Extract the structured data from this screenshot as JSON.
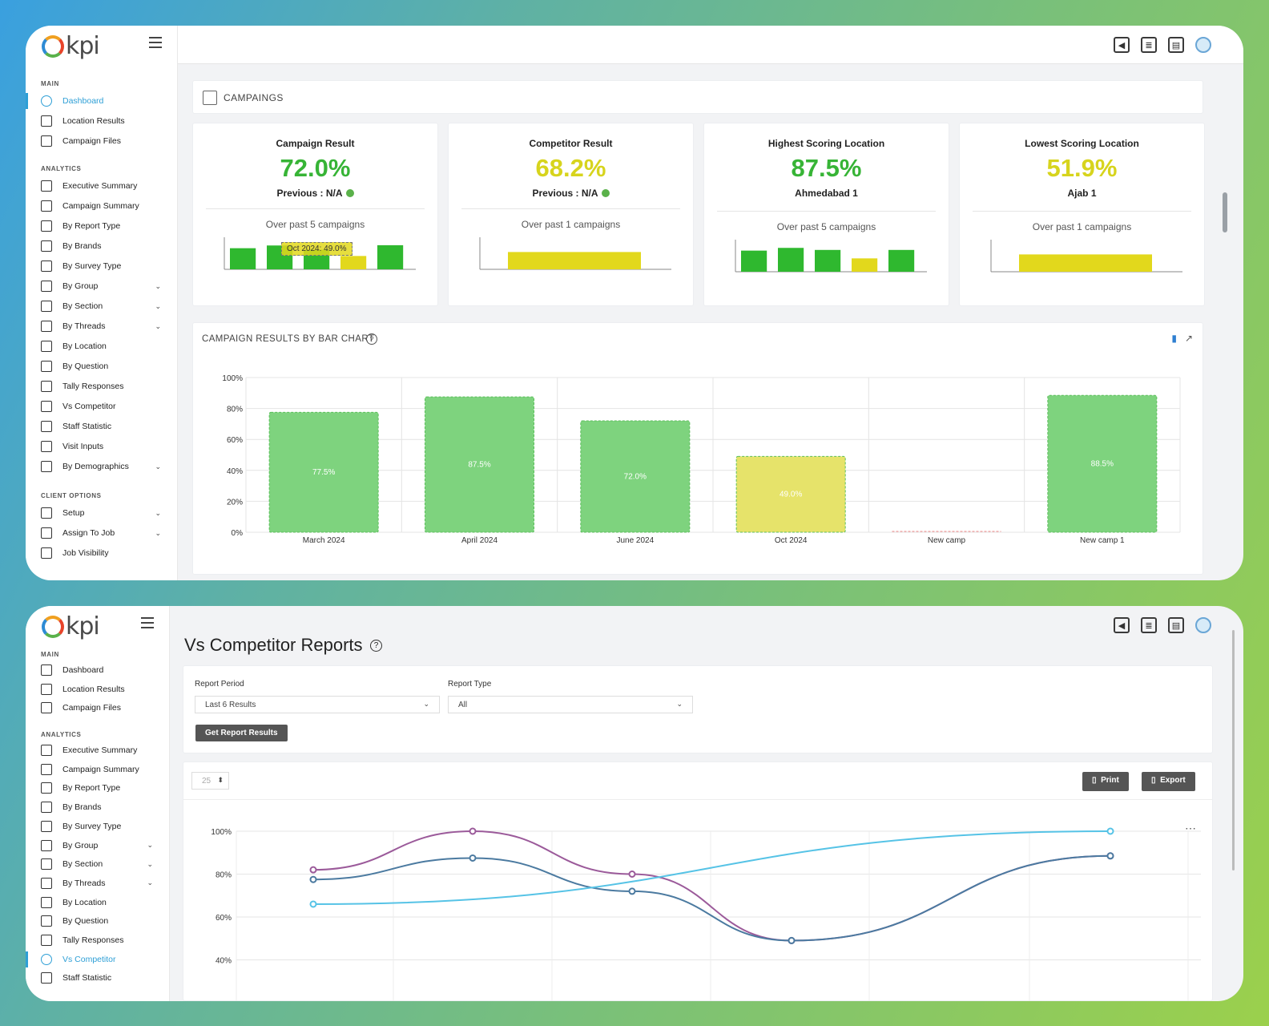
{
  "brand": {
    "logo_text": "kpi"
  },
  "screen1": {
    "sidebar": {
      "main_header": "MAIN",
      "main": [
        {
          "label": "Dashboard",
          "active": true
        },
        {
          "label": "Location Results"
        },
        {
          "label": "Campaign Files"
        }
      ],
      "analytics_header": "ANALYTICS",
      "analytics": [
        {
          "label": "Executive Summary"
        },
        {
          "label": "Campaign Summary"
        },
        {
          "label": "By Report Type"
        },
        {
          "label": "By Brands"
        },
        {
          "label": "By Survey Type"
        },
        {
          "label": "By Group",
          "expandable": true
        },
        {
          "label": "By Section",
          "expandable": true
        },
        {
          "label": "By Threads",
          "expandable": true
        },
        {
          "label": "By Location"
        },
        {
          "label": "By Question"
        },
        {
          "label": "Tally Responses"
        },
        {
          "label": "Vs Competitor"
        },
        {
          "label": "Staff Statistic"
        },
        {
          "label": "Visit Inputs"
        },
        {
          "label": "By Demographics",
          "expandable": true
        }
      ],
      "client_header": "CLIENT OPTIONS",
      "client": [
        {
          "label": "Setup",
          "expandable": true
        },
        {
          "label": "Assign To Job",
          "expandable": true
        },
        {
          "label": "Job Visibility"
        }
      ]
    },
    "campaigns_title": "CAMPAINGS",
    "kpis": [
      {
        "title": "Campaign Result",
        "value": "72.0%",
        "color": "#37b436",
        "sub": "Previous : N/A",
        "sub_icon": true,
        "note": "Over past 5 campaigns",
        "mini": [
          {
            "v": 77.5,
            "c": "#2fb82f"
          },
          {
            "v": 87.5,
            "c": "#2fb82f"
          },
          {
            "v": 72.0,
            "c": "#2fb82f"
          },
          {
            "v": 49.0,
            "c": "#e2d81c"
          },
          {
            "v": 88.5,
            "c": "#2fb82f"
          }
        ],
        "tooltip": "Oct 2024: 49.0%"
      },
      {
        "title": "Competitor Result",
        "value": "68.2%",
        "color": "#d7d41d",
        "sub": "Previous : N/A",
        "sub_icon": true,
        "note": "Over past 1 campaigns",
        "mini": [
          {
            "v": 68.2,
            "c": "#e2d81c"
          }
        ]
      },
      {
        "title": "Highest Scoring Location",
        "value": "87.5%",
        "color": "#37b436",
        "sub": "Ahmedabad 1",
        "sub_icon": false,
        "note": "Over past 5 campaigns",
        "mini": [
          {
            "v": 77.5,
            "c": "#2fb82f"
          },
          {
            "v": 87.5,
            "c": "#2fb82f"
          },
          {
            "v": 80,
            "c": "#2fb82f"
          },
          {
            "v": 49.0,
            "c": "#e2d81c"
          },
          {
            "v": 80,
            "c": "#2fb82f"
          }
        ]
      },
      {
        "title": "Lowest Scoring Location",
        "value": "51.9%",
        "color": "#d7d41d",
        "sub": "Ajab 1",
        "sub_icon": false,
        "note": "Over past 1 campaigns",
        "mini": [
          {
            "v": 51.9,
            "c": "#e2d81c"
          }
        ]
      }
    ],
    "bar_chart_title": "CAMPAIGN RESULTS BY BAR CHART",
    "chart_data": {
      "type": "bar",
      "categories": [
        "March 2024",
        "April 2024",
        "June 2024",
        "Oct 2024",
        "New camp",
        "New camp 1"
      ],
      "values": [
        77.5,
        87.5,
        72.0,
        49.0,
        0,
        88.5
      ],
      "value_labels": [
        "77.5%",
        "87.5%",
        "72.0%",
        "49.0%",
        "",
        "88.5%"
      ],
      "colors": [
        "#7ed37e",
        "#7ed37e",
        "#7ed37e",
        "#e6e36a",
        "#e88",
        "#7ed37e"
      ],
      "yticks": [
        "100%",
        "80%",
        "60%",
        "40%",
        "20%",
        "0%"
      ],
      "ylim": [
        0,
        100
      ]
    }
  },
  "screen2": {
    "sidebar": {
      "main_header": "MAIN",
      "main": [
        {
          "label": "Dashboard"
        },
        {
          "label": "Location Results"
        },
        {
          "label": "Campaign Files"
        }
      ],
      "analytics_header": "ANALYTICS",
      "analytics": [
        {
          "label": "Executive Summary"
        },
        {
          "label": "Campaign Summary"
        },
        {
          "label": "By Report Type"
        },
        {
          "label": "By Brands"
        },
        {
          "label": "By Survey Type"
        },
        {
          "label": "By Group",
          "expandable": true
        },
        {
          "label": "By Section",
          "expandable": true
        },
        {
          "label": "By Threads",
          "expandable": true
        },
        {
          "label": "By Location"
        },
        {
          "label": "By Question"
        },
        {
          "label": "Tally Responses"
        },
        {
          "label": "Vs Competitor",
          "active": true
        },
        {
          "label": "Staff Statistic"
        }
      ]
    },
    "page_title": "Vs Competitor Reports",
    "filters": {
      "period_label": "Report Period",
      "period_value": "Last 6 Results",
      "type_label": "Report Type",
      "type_value": "All",
      "submit": "Get Report Results"
    },
    "page_size": "25",
    "print_label": "Print",
    "export_label": "Export",
    "more_glyph": "⋯",
    "line_chart": {
      "type": "line",
      "yticks": [
        "100%",
        "80%",
        "60%",
        "40%"
      ],
      "ylim": [
        33,
        100
      ],
      "x": [
        0,
        1,
        2,
        3,
        4,
        5
      ],
      "series": [
        {
          "color": "#9b5a9a",
          "points": [
            [
              0,
              82
            ],
            [
              1,
              100
            ],
            [
              2,
              80
            ],
            [
              3,
              49
            ],
            [
              5,
              88.5
            ]
          ]
        },
        {
          "color": "#4b7aa0",
          "points": [
            [
              0,
              77.5
            ],
            [
              1,
              87.5
            ],
            [
              2,
              72
            ],
            [
              3,
              49
            ],
            [
              5,
              88.5
            ]
          ]
        },
        {
          "color": "#56c3e6",
          "points": [
            [
              0,
              66
            ],
            [
              5,
              100
            ]
          ]
        }
      ]
    }
  }
}
